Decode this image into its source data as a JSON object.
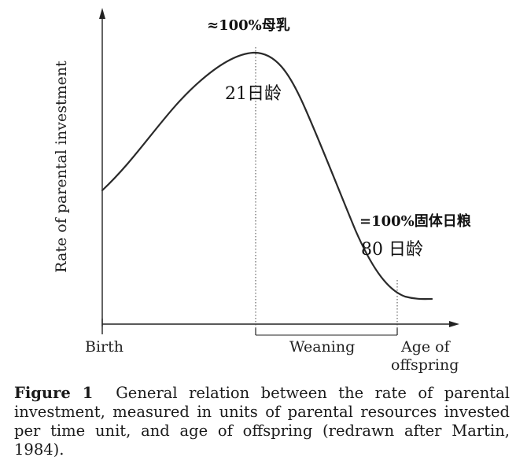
{
  "chart_data": {
    "type": "line",
    "title": "",
    "ylabel": "Rate of parental investment",
    "xlabel": "Age of offspring",
    "x_markers": {
      "birth": "Birth",
      "weaning": "Weaning",
      "age_line1": "Age of",
      "age_line2": "offspring"
    },
    "annotations": {
      "peak_top": "≈100%母乳",
      "peak_day": "21日龄",
      "end_top": "=100%固体日粮",
      "end_day": "80 日龄"
    },
    "x": [
      0,
      21,
      80
    ],
    "series": [
      {
        "values": [
          0.5,
          1.0,
          0.05
        ]
      }
    ],
    "grid": false,
    "legend": "none"
  },
  "caption": {
    "label": "Figure 1",
    "text": "General relation between the rate of parental investment, measured in units of parental resources invested per time unit, and age of offspring (redrawn after Martin, 1984)."
  }
}
